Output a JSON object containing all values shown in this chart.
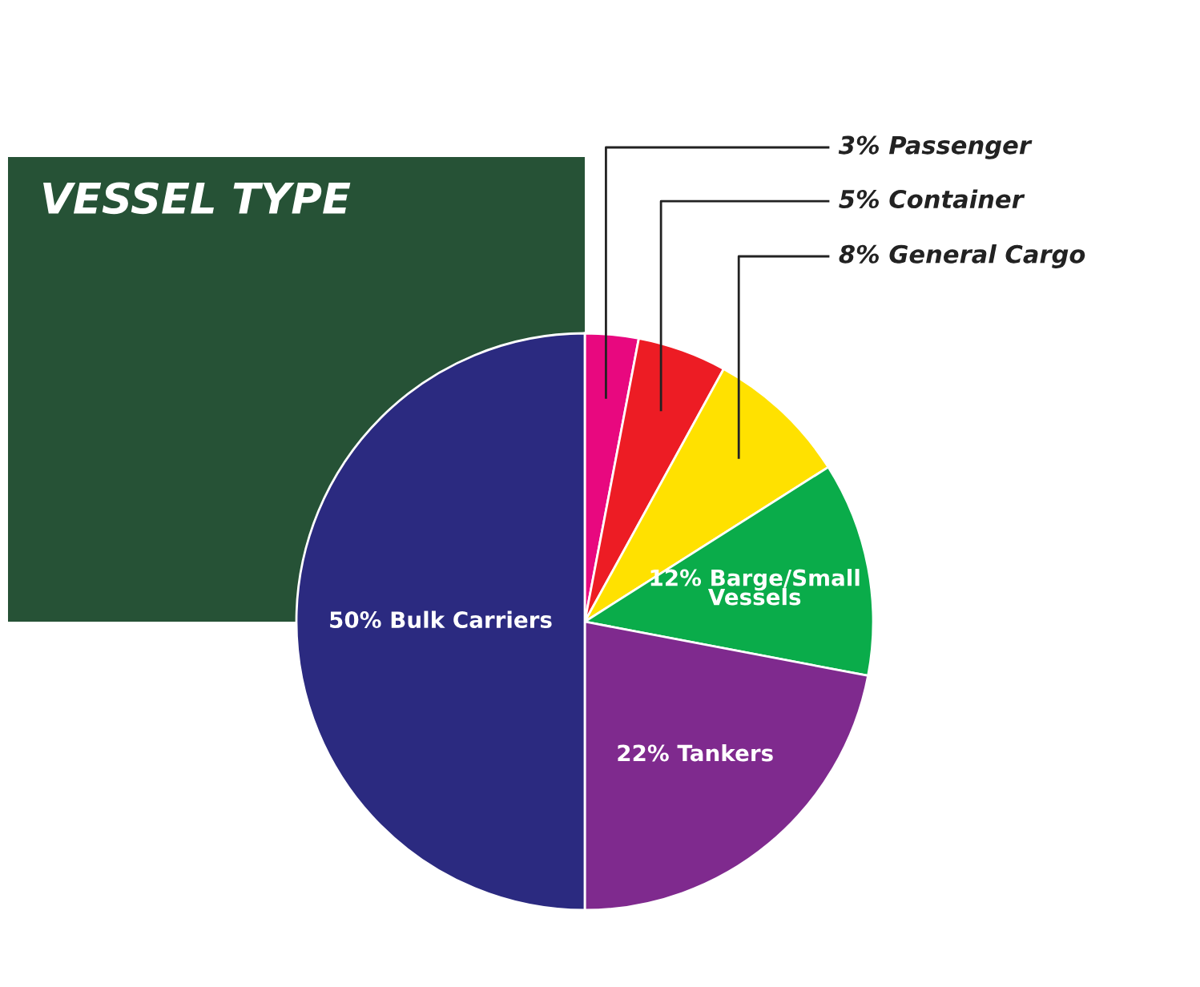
{
  "chart_data": {
    "type": "pie",
    "title": "VESSEL TYPE",
    "categories": [
      "Passenger",
      "Container",
      "General Cargo",
      "Barge/Small\nVessels",
      "Tankers",
      "Bulk Carriers"
    ],
    "values": [
      3,
      5,
      8,
      12,
      22,
      50
    ],
    "value_labels": [
      "3%",
      "5%",
      "8%",
      "12%",
      "22%",
      "50%"
    ],
    "colors": [
      "#e8087f",
      "#ed1c24",
      "#ffe100",
      "#0aac4a",
      "#7f2a8e",
      "#2b2a80"
    ]
  }
}
